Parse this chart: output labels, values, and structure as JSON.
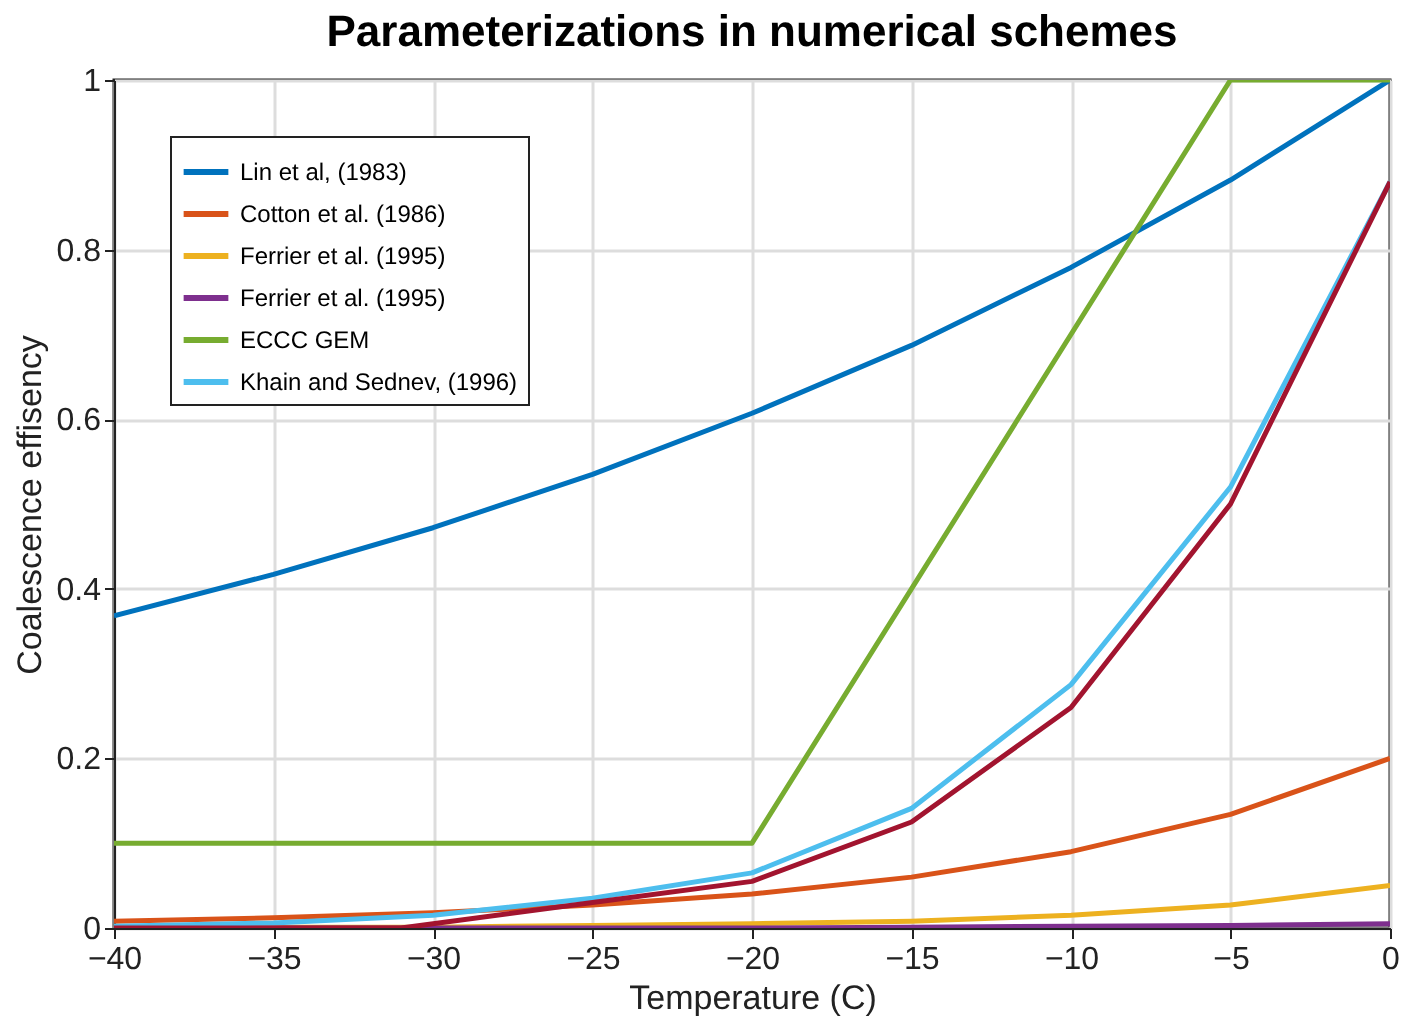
{
  "chart_data": {
    "type": "line",
    "title": "Parameterizations in numerical schemes",
    "xlabel": "Temperature (C)",
    "ylabel": "Coalescence effisency",
    "x": [
      -40,
      -35,
      -30,
      -25,
      -20,
      -15,
      -10,
      -5,
      0
    ],
    "series": [
      {
        "name": "Lin et al, (1983)",
        "color": "#0072bd",
        "values": [
          0.368,
          0.417,
          0.472,
          0.535,
          0.607,
          0.687,
          0.779,
          0.882,
          1.0
        ]
      },
      {
        "name": "Cotton et al. (1986)",
        "color": "#d95319",
        "values": [
          0.008,
          0.012,
          0.018,
          0.027,
          0.04,
          0.06,
          0.09,
          0.134,
          0.2
        ]
      },
      {
        "name": "Ferrier et al. (1995)",
        "color": "#edb120",
        "values": [
          0,
          0.001,
          0.001,
          0.003,
          0.005,
          0.008,
          0.015,
          0.027,
          0.05
        ]
      },
      {
        "name": "Ferrier et al. (1995)",
        "color": "#7e2f8e",
        "values": [
          0,
          0,
          0,
          0,
          0,
          0.001,
          0.002,
          0.003,
          0.005
        ]
      },
      {
        "name": "ECCC GEM",
        "color": "#77ac30",
        "x": [
          -40,
          -20,
          -5,
          0
        ],
        "values": [
          0.1,
          0.1,
          1.0,
          1.0
        ]
      },
      {
        "name": "Khain and Sednev, (1996)",
        "color": "#4dbeee",
        "values": [
          0.002,
          0.006,
          0.015,
          0.035,
          0.065,
          0.141,
          0.287,
          0.52,
          0.88
        ]
      },
      {
        "color": "#a2142f",
        "x": [
          -40,
          -31,
          -25,
          -20,
          -15,
          -10,
          -5,
          0
        ],
        "values": [
          0.0,
          0.0,
          0.03,
          0.055,
          0.125,
          0.26,
          0.5,
          0.88
        ]
      }
    ],
    "xlim": [
      -40,
      0
    ],
    "xticks": [
      -40,
      -35,
      -30,
      -25,
      -20,
      -15,
      -10,
      -5,
      0
    ],
    "ylim": [
      0,
      1
    ],
    "yticks": [
      0,
      0.2,
      0.4,
      0.6,
      0.8,
      1
    ],
    "grid": true,
    "legend": "top left"
  }
}
